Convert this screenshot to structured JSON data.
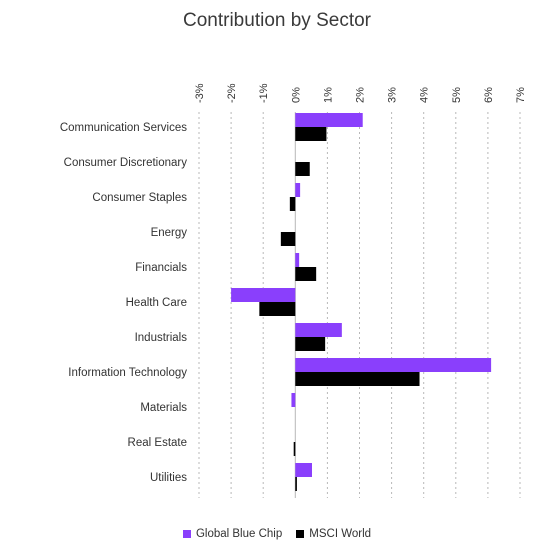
{
  "chart_data": {
    "type": "bar",
    "orientation": "horizontal",
    "title": "Contribution by Sector",
    "xlabel": "",
    "ylabel": "",
    "xlim": [
      -3,
      7
    ],
    "xticks": [
      -3,
      -2,
      -1,
      0,
      1,
      2,
      3,
      4,
      5,
      6,
      7
    ],
    "tick_labels": [
      "-3%",
      "-2%",
      "-1%",
      "0%",
      "1%",
      "2%",
      "3%",
      "4%",
      "5%",
      "6%",
      "7%"
    ],
    "grid": true,
    "legend_position": "bottom",
    "categories": [
      "Communication Services",
      "Consumer Discretionary",
      "Consumer Staples",
      "Energy",
      "Financials",
      "Health Care",
      "Industrials",
      "Information Technology",
      "Materials",
      "Real Estate",
      "Utilities"
    ],
    "series": [
      {
        "name": "Global Blue Chip",
        "color": "#8a3ffc",
        "values": [
          2.1,
          0.0,
          0.15,
          0.0,
          0.12,
          -2.0,
          1.45,
          6.1,
          -0.12,
          0.0,
          0.52
        ]
      },
      {
        "name": "MSCI World",
        "color": "#000000",
        "values": [
          0.97,
          0.45,
          -0.17,
          -0.45,
          0.65,
          -1.12,
          0.93,
          3.87,
          0.0,
          -0.05,
          0.05
        ]
      }
    ]
  }
}
